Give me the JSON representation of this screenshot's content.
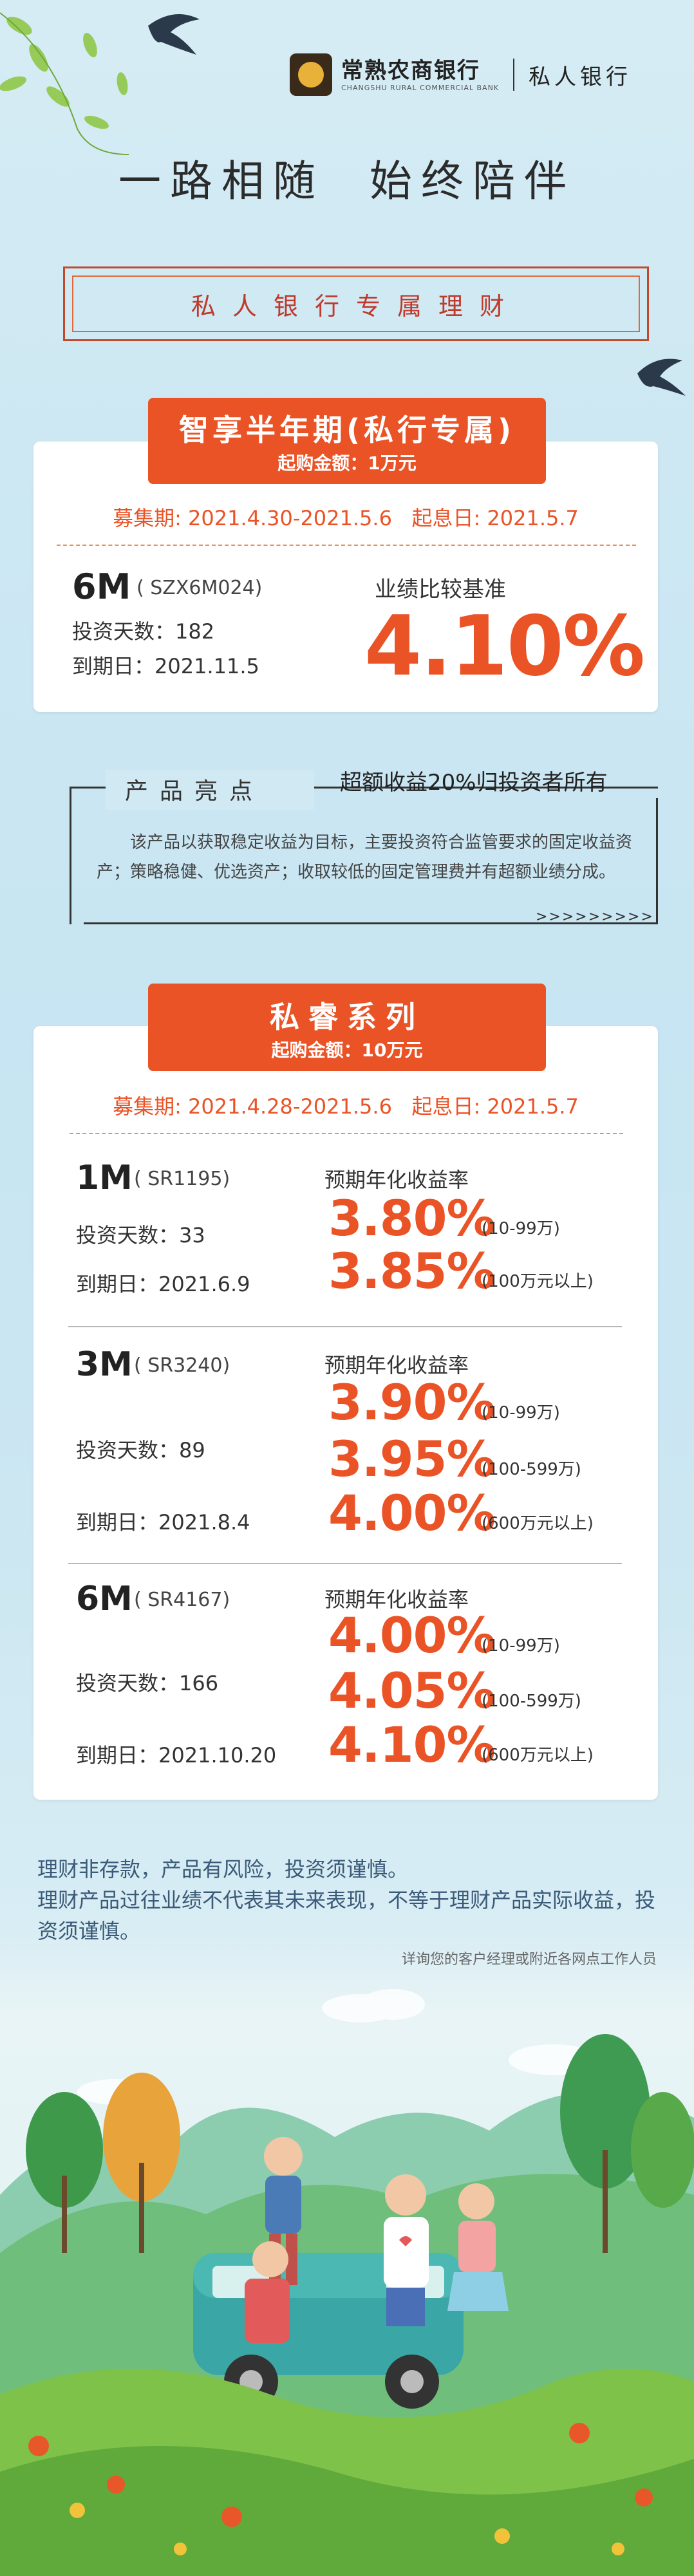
{
  "header": {
    "bank_name": "常熟农商银行",
    "bank_name_en": "CHANGSHU RURAL COMMERCIAL BANK",
    "division": "私人银行"
  },
  "slogan": "一路相随  始终陪伴",
  "ribbon": "私人银行专属理财",
  "product1": {
    "title": "智享半年期(私行专属)",
    "min_purchase": "起购金额：1万元",
    "period": "募集期: 2021.4.30-2021.5.6   起息日: 2021.5.7",
    "term": "6M",
    "code": "( SZX6M024)",
    "days": "投资天数：182",
    "maturity": "到期日：2021.11.5",
    "benchmark_label": "业绩比较基准",
    "rate": "4.10%"
  },
  "highlight": {
    "label": "产品亮点",
    "title": "超额收益20%归投资者所有",
    "description": "该产品以获取稳定收益为目标，主要投资符合监管要求的固定收益资产；策略稳健、优选资产；收取较低的固定管理费并有超额业绩分成。",
    "arrows": ">>>>>>>>>"
  },
  "series": {
    "title": "私睿系列",
    "min_purchase": "起购金额：10万元",
    "period": "募集期: 2021.4.28-2021.5.6   起息日: 2021.5.7",
    "rate_header": "预期年化收益率",
    "products": [
      {
        "term": "1M",
        "code": "( SR1195)",
        "days": "投资天数：33",
        "maturity": "到期日：2021.6.9",
        "rates": [
          {
            "rate": "3.80%",
            "range": "(10-99万)"
          },
          {
            "rate": "3.85%",
            "range": "(100万元以上)"
          }
        ]
      },
      {
        "term": "3M",
        "code": "( SR3240)",
        "days": "投资天数：89",
        "maturity": "到期日：2021.8.4",
        "rates": [
          {
            "rate": "3.90%",
            "range": "(10-99万)"
          },
          {
            "rate": "3.95%",
            "range": "(100-599万)"
          },
          {
            "rate": "4.00%",
            "range": "(600万元以上)"
          }
        ]
      },
      {
        "term": "6M",
        "code": "( SR4167)",
        "days": "投资天数：166",
        "maturity": "到期日：2021.10.20",
        "rates": [
          {
            "rate": "4.00%",
            "range": "(10-99万)"
          },
          {
            "rate": "4.05%",
            "range": "(100-599万)"
          },
          {
            "rate": "4.10%",
            "range": "(600万元以上)"
          }
        ]
      }
    ]
  },
  "disclaimer": {
    "line1": "理财非存款，产品有风险，投资须谨慎。",
    "line2": "理财产品过往业绩不代表其未来表现，不等于理财产品实际收益，投资须谨慎。",
    "contact": "详询您的客户经理或附近各网点工作人员"
  },
  "colors": {
    "accent": "#ea5326",
    "ribbon": "#c0392b",
    "sky": "#cde8f3"
  }
}
